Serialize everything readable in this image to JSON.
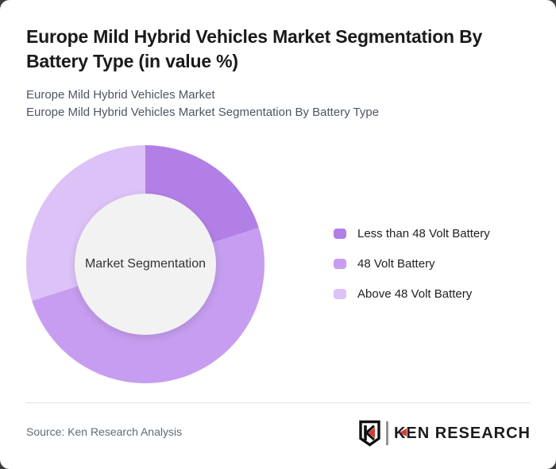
{
  "page": {
    "outside_background": "#3d3d3d",
    "card_background": "#ffffff"
  },
  "header": {
    "title_lines": [
      "Europe Mild Hybrid Vehicles Market Segmentation By",
      "Battery Type (in value %)"
    ],
    "subtitle_line1": "Europe Mild Hybrid Vehicles Market",
    "subtitle_line2": "Europe Mild Hybrid Vehicles Market Segmentation By Battery Type"
  },
  "chart_data": {
    "type": "pie",
    "donut": true,
    "title": "Europe Mild Hybrid Vehicles Market Segmentation By Battery Type (in value %)",
    "center_label": "Market Segmentation",
    "start_angle_deg": 0,
    "direction": "clockwise",
    "legend_position": "right",
    "values_are_estimated_from_angles": true,
    "hole_color": "#f2f2f2",
    "segments": [
      {
        "label": "Less than 48 Volt Battery",
        "value": 20,
        "color": "#b27fe6"
      },
      {
        "label": "48 Volt Battery",
        "value": 50,
        "color": "#c69df0"
      },
      {
        "label": "Above 48 Volt Battery",
        "value": 30,
        "color": "#dcc2f6"
      }
    ]
  },
  "footer": {
    "source": "Source: Ken Research Analysis",
    "logo": {
      "text_k": "K",
      "text_rest": "EN RESEARCH",
      "accent_color": "#d93a35"
    }
  }
}
